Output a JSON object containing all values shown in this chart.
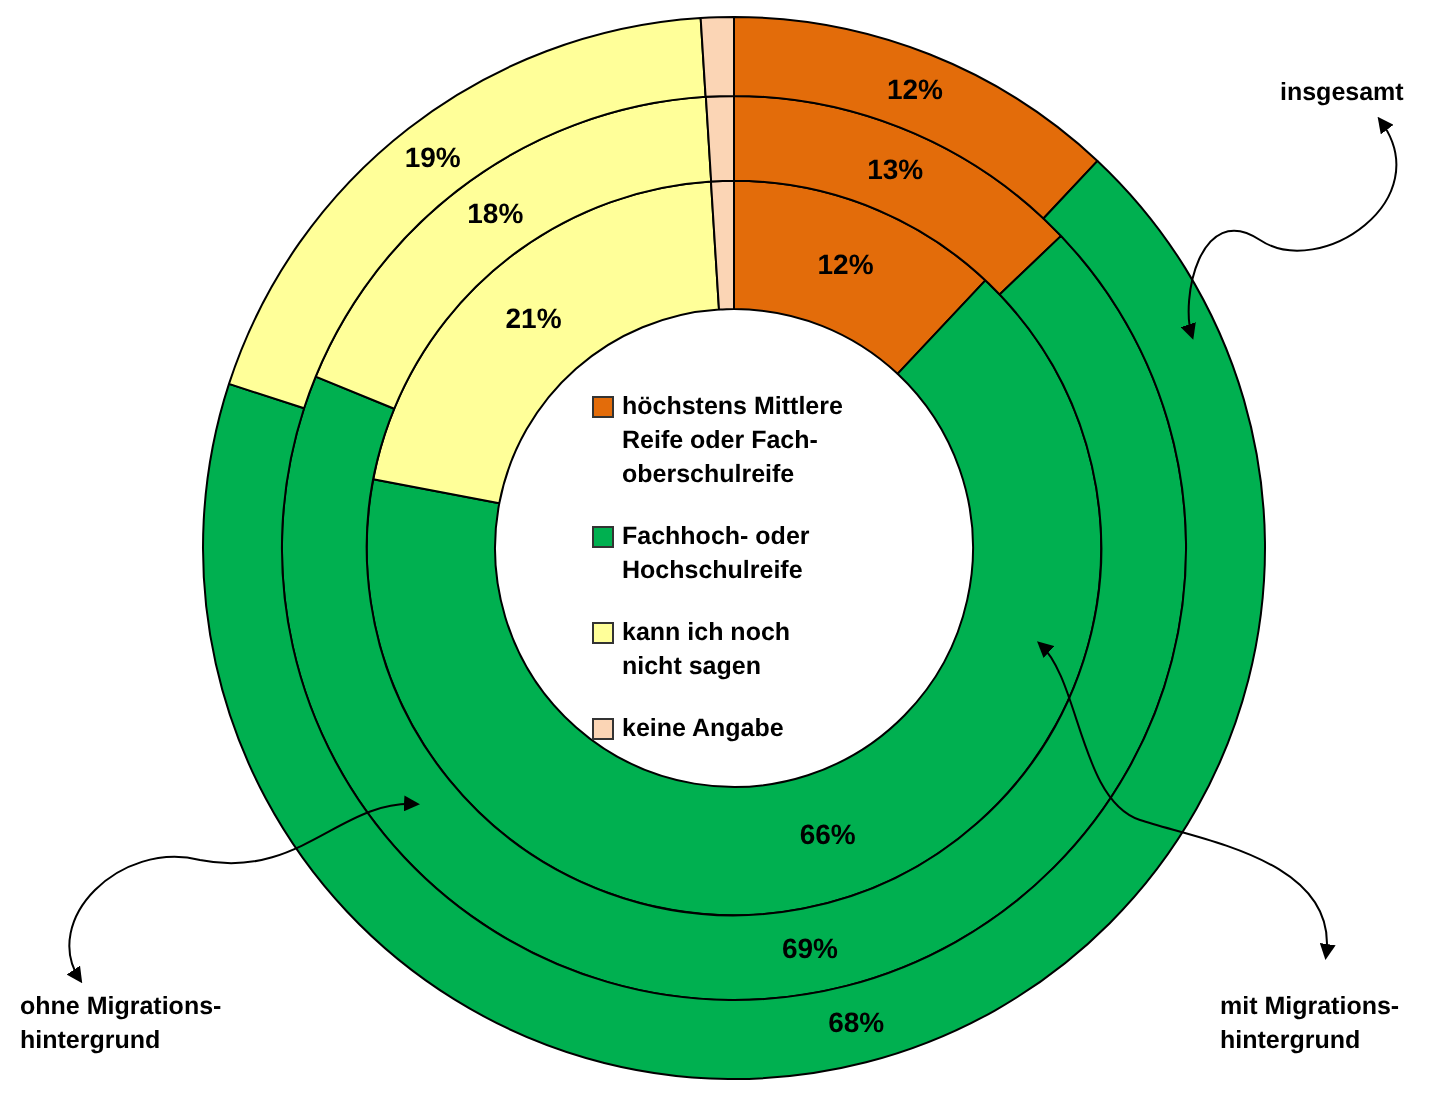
{
  "chart_data": {
    "type": "donut",
    "categories": [
      "höchstens Mittlere Reife oder Fach-\noberschulreife",
      "Fachhoch- oder\nHochschulreife",
      "kann ich noch\nnicht sagen",
      "keine Angabe"
    ],
    "colors": [
      "#e36c0a",
      "#00b050",
      "#ffff99",
      "#fbd5b5"
    ],
    "series": [
      {
        "values": [
          12,
          68,
          19,
          1
        ],
        "value_labels": [
          "12%",
          "68%",
          "19%",
          null
        ]
      },
      {
        "values": [
          13,
          69,
          18,
          1
        ],
        "value_labels": [
          "13%",
          "69%",
          "18%",
          null
        ]
      },
      {
        "values": [
          12,
          66,
          21,
          1
        ],
        "value_labels": [
          "12%",
          "66%",
          "21%",
          null
        ]
      }
    ],
    "annotations": [
      "insgesamt",
      "ohne Migrations-\nhintergrund",
      "mit Migrations-\nhintergrund"
    ],
    "legend": "center"
  }
}
